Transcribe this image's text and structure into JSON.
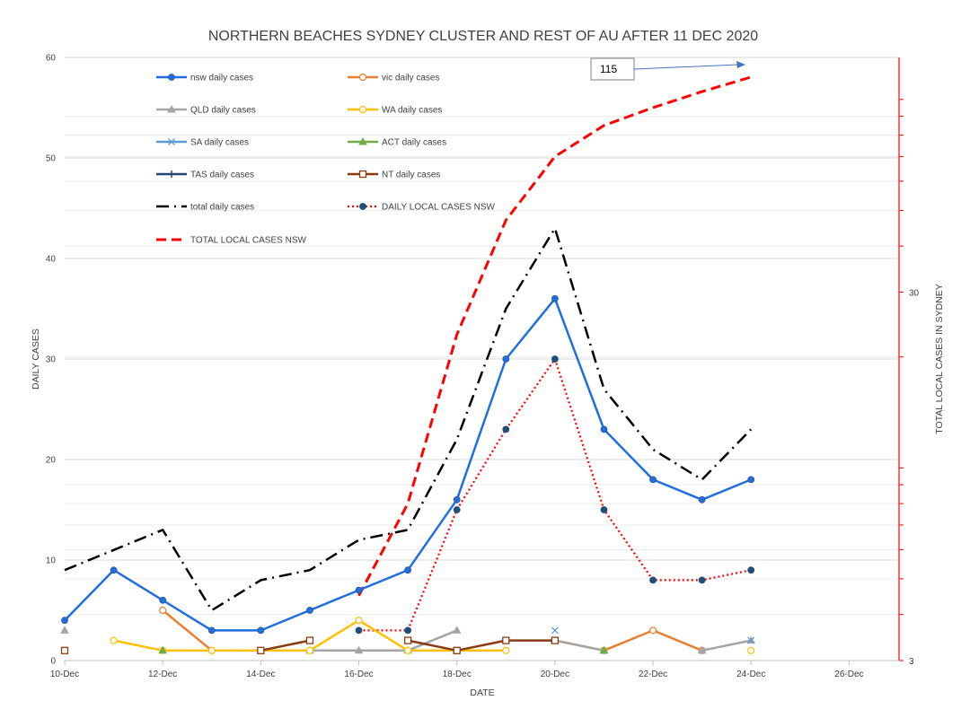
{
  "chart_data": {
    "type": "line",
    "title": "NORTHERN BEACHES SYDNEY CLUSTER AND REST OF AU AFTER 11 DEC 2020",
    "xlabel": "DATE",
    "ylabel": "DAILY CASES",
    "y2label": "TOTAL LOCAL CASES IN SYDNEY",
    "x_ticks": [
      "10-Dec",
      "12-Dec",
      "14-Dec",
      "16-Dec",
      "18-Dec",
      "20-Dec",
      "22-Dec",
      "24-Dec",
      "26-Dec"
    ],
    "ylim": [
      0,
      60
    ],
    "y_ticks": [
      0,
      10,
      20,
      30,
      40,
      50,
      60
    ],
    "y2_scale": "log",
    "y2lim": [
      3,
      130
    ],
    "y2_tick_labels": [
      "3",
      "30"
    ],
    "annotation": {
      "text": "115"
    },
    "series": [
      {
        "name": "nsw daily cases",
        "color": "#1f6fe0",
        "dash": "solid",
        "marker": "circle",
        "points": [
          [
            10,
            4
          ],
          [
            11,
            9
          ],
          [
            12,
            6
          ],
          [
            13,
            3
          ],
          [
            14,
            3
          ],
          [
            15,
            5
          ],
          [
            16,
            7
          ],
          [
            17,
            9
          ],
          [
            18,
            16
          ],
          [
            19,
            30
          ],
          [
            20,
            36
          ],
          [
            21,
            23
          ],
          [
            22,
            18
          ],
          [
            23,
            16
          ],
          [
            24,
            18
          ]
        ]
      },
      {
        "name": "vic daily cases",
        "color": "#ed7d31",
        "dash": "solid",
        "marker": "circle-open",
        "points": [
          [
            12,
            5
          ],
          [
            13,
            1
          ],
          [
            20,
            2
          ],
          [
            21,
            1
          ],
          [
            22,
            3
          ],
          [
            23,
            1
          ]
        ]
      },
      {
        "name": "QLD daily cases",
        "color": "#a5a5a5",
        "dash": "solid",
        "marker": "triangle",
        "points": [
          [
            10,
            3
          ],
          [
            15,
            1
          ],
          [
            16,
            1
          ],
          [
            17,
            1
          ],
          [
            18,
            3
          ],
          [
            20,
            2
          ],
          [
            21,
            1
          ],
          [
            23,
            1
          ],
          [
            24,
            2
          ]
        ]
      },
      {
        "name": "WA  daily cases",
        "color": "#ffc000",
        "dash": "solid",
        "marker": "circle-open",
        "points": [
          [
            11,
            2
          ],
          [
            12,
            1
          ],
          [
            13,
            1
          ],
          [
            14,
            1
          ],
          [
            15,
            1
          ],
          [
            16,
            4
          ],
          [
            17,
            1
          ],
          [
            18,
            1
          ],
          [
            19,
            1
          ],
          [
            24,
            1
          ]
        ]
      },
      {
        "name": "SA  daily cases",
        "color": "#5b9bd5",
        "dash": "solid",
        "marker": "x",
        "points": [
          [
            20,
            3
          ],
          [
            24,
            2
          ]
        ]
      },
      {
        "name": "ACT daily cases",
        "color": "#70ad47",
        "dash": "solid",
        "marker": "triangle",
        "points": [
          [
            12,
            1
          ],
          [
            21,
            1
          ]
        ]
      },
      {
        "name": "TAS daily cases",
        "color": "#264478",
        "dash": "solid",
        "marker": "plus",
        "points": []
      },
      {
        "name": "NT daily cases",
        "color": "#8b3a0f",
        "dash": "solid",
        "marker": "square-open",
        "points": [
          [
            10,
            1
          ],
          [
            14,
            1
          ],
          [
            15,
            2
          ],
          [
            17,
            2
          ],
          [
            18,
            1
          ],
          [
            19,
            2
          ],
          [
            20,
            2
          ]
        ]
      },
      {
        "name": "total daily cases",
        "color": "#000000",
        "dash": "dashdot",
        "marker": "none",
        "points": [
          [
            10,
            9
          ],
          [
            11,
            11
          ],
          [
            12,
            13
          ],
          [
            13,
            5
          ],
          [
            14,
            8
          ],
          [
            15,
            9
          ],
          [
            16,
            12
          ],
          [
            17,
            13
          ],
          [
            18,
            22
          ],
          [
            19,
            35
          ],
          [
            20,
            43
          ],
          [
            21,
            27
          ],
          [
            22,
            21
          ],
          [
            23,
            18
          ],
          [
            24,
            23
          ]
        ]
      },
      {
        "name": "DAILY LOCAL CASES NSW",
        "color": "#ff0000",
        "dash": "dotted",
        "marker": "circle-dark",
        "points": [
          [
            16,
            3
          ],
          [
            17,
            3
          ],
          [
            18,
            15
          ],
          [
            19,
            23
          ],
          [
            20,
            30
          ],
          [
            21,
            15
          ],
          [
            22,
            8
          ],
          [
            23,
            8
          ],
          [
            24,
            9
          ]
        ]
      },
      {
        "name": "TOTAL LOCAL CASES  NSW",
        "color": "#ff0000",
        "dash": "dashed",
        "marker": "none",
        "axis": "secondary",
        "points": [
          [
            16,
            4.5
          ],
          [
            17,
            8
          ],
          [
            18,
            23
          ],
          [
            19,
            47
          ],
          [
            20,
            70
          ],
          [
            21,
            85
          ],
          [
            22,
            95
          ],
          [
            23,
            105
          ],
          [
            24,
            115
          ]
        ]
      }
    ]
  }
}
